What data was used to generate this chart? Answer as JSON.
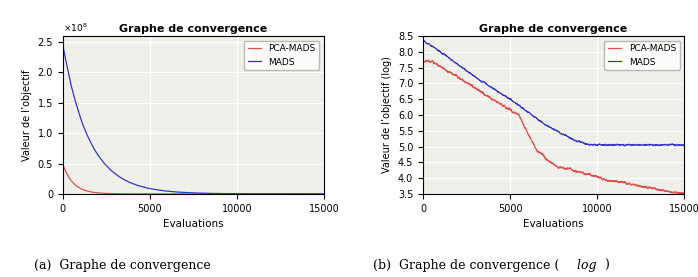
{
  "title": "Graphe de convergence",
  "xlabel": "Evaluations",
  "ylabel_left": "Valeur de l’objectif",
  "ylabel_right": "Valeur de l’objectif (log)",
  "caption_a": "(a)  Graphe de convergence",
  "x_max": 15000,
  "pca_color": "#e05050",
  "mads_color": "#3535cc",
  "legend_labels": [
    "PCA-MADS",
    "MADS"
  ],
  "plot1_ylim": [
    0,
    260000000.0
  ],
  "plot1_yticks": [
    0,
    50000000.0,
    100000000.0,
    150000000.0,
    200000000.0,
    250000000.0
  ],
  "plot1_xticks": [
    0,
    5000,
    10000,
    15000
  ],
  "plot2_ylim": [
    3.5,
    8.5
  ],
  "plot2_yticks": [
    3.5,
    4.0,
    4.5,
    5.0,
    5.5,
    6.0,
    6.5,
    7.0,
    7.5,
    8.0,
    8.5
  ],
  "plot2_xticks": [
    0,
    5000,
    10000,
    15000
  ],
  "background_color": "#f0f0ea",
  "linewidth": 0.9
}
